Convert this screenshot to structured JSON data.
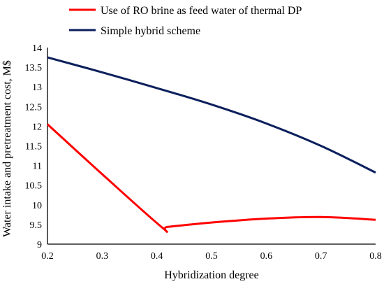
{
  "chart_data": {
    "type": "line",
    "title": "",
    "xlabel": "Hybridization degree",
    "ylabel": "Water intake and pretreatment cost, M$",
    "xlim": [
      0.2,
      0.8
    ],
    "ylim": [
      9,
      14
    ],
    "xticks": [
      0.2,
      0.3,
      0.4,
      0.5,
      0.6,
      0.7,
      0.8
    ],
    "yticks": [
      9,
      9.5,
      10,
      10.5,
      11,
      11.5,
      12,
      12.5,
      13,
      13.5,
      14
    ],
    "xtick_labels": [
      "0.2",
      "0.3",
      "0.4",
      "0.5",
      "0.6",
      "0.7",
      "0.8"
    ],
    "ytick_labels": [
      "9",
      "9.5",
      "10",
      "10.5",
      "11",
      "11.5",
      "12",
      "12.5",
      "13",
      "13.5",
      "14"
    ],
    "grid": false,
    "legend_position": "top-left, above plot",
    "series": [
      {
        "name": "Use of RO brine as feed water of thermal DP",
        "color": "#ff0000",
        "x": [
          0.2,
          0.3,
          0.41,
          0.42,
          0.5,
          0.6,
          0.7,
          0.8
        ],
        "y": [
          12.05,
          10.78,
          9.42,
          9.44,
          9.55,
          9.65,
          9.69,
          9.62
        ]
      },
      {
        "name": "Simple hybrid scheme",
        "color": "#0b1f5c",
        "x": [
          0.2,
          0.3,
          0.4,
          0.5,
          0.6,
          0.7,
          0.8
        ],
        "y": [
          13.75,
          13.37,
          12.97,
          12.55,
          12.07,
          11.5,
          10.82
        ]
      }
    ]
  }
}
